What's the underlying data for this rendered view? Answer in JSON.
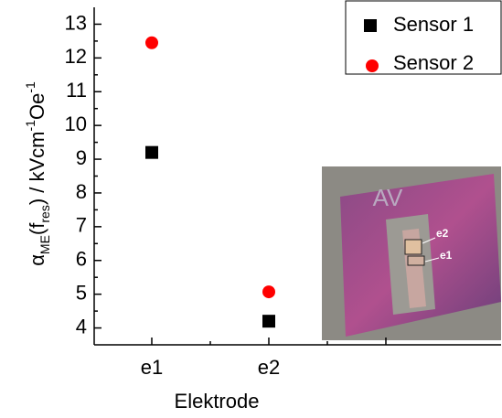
{
  "chart_data": {
    "type": "scatter",
    "x_label": "Elektrode",
    "y_label": [
      {
        "text": "α"
      },
      {
        "text": "ME",
        "shift": "sub"
      },
      {
        "text": "(f"
      },
      {
        "text": "res",
        "shift": "sub"
      },
      {
        "text": ") / kVcm"
      },
      {
        "text": "-1",
        "shift": "super"
      },
      {
        "text": "Oe"
      },
      {
        "text": "-1",
        "shift": "super"
      }
    ],
    "categories": [
      "e1",
      "e2",
      null
    ],
    "series": [
      {
        "name": "Sensor 1",
        "color": "#000000",
        "marker": "square",
        "values": [
          9.2,
          4.2,
          null
        ]
      },
      {
        "name": "Sensor 2",
        "color": "#ff0000",
        "marker": "circle",
        "values": [
          12.45,
          5.07,
          null
        ]
      }
    ],
    "ylim": [
      3.5,
      13.5
    ],
    "yticks": [
      4,
      5,
      6,
      7,
      8,
      9,
      10,
      11,
      12,
      13
    ],
    "legend": "upper right",
    "inset": {
      "labels": [
        "AV",
        "e2",
        "e1"
      ]
    }
  }
}
